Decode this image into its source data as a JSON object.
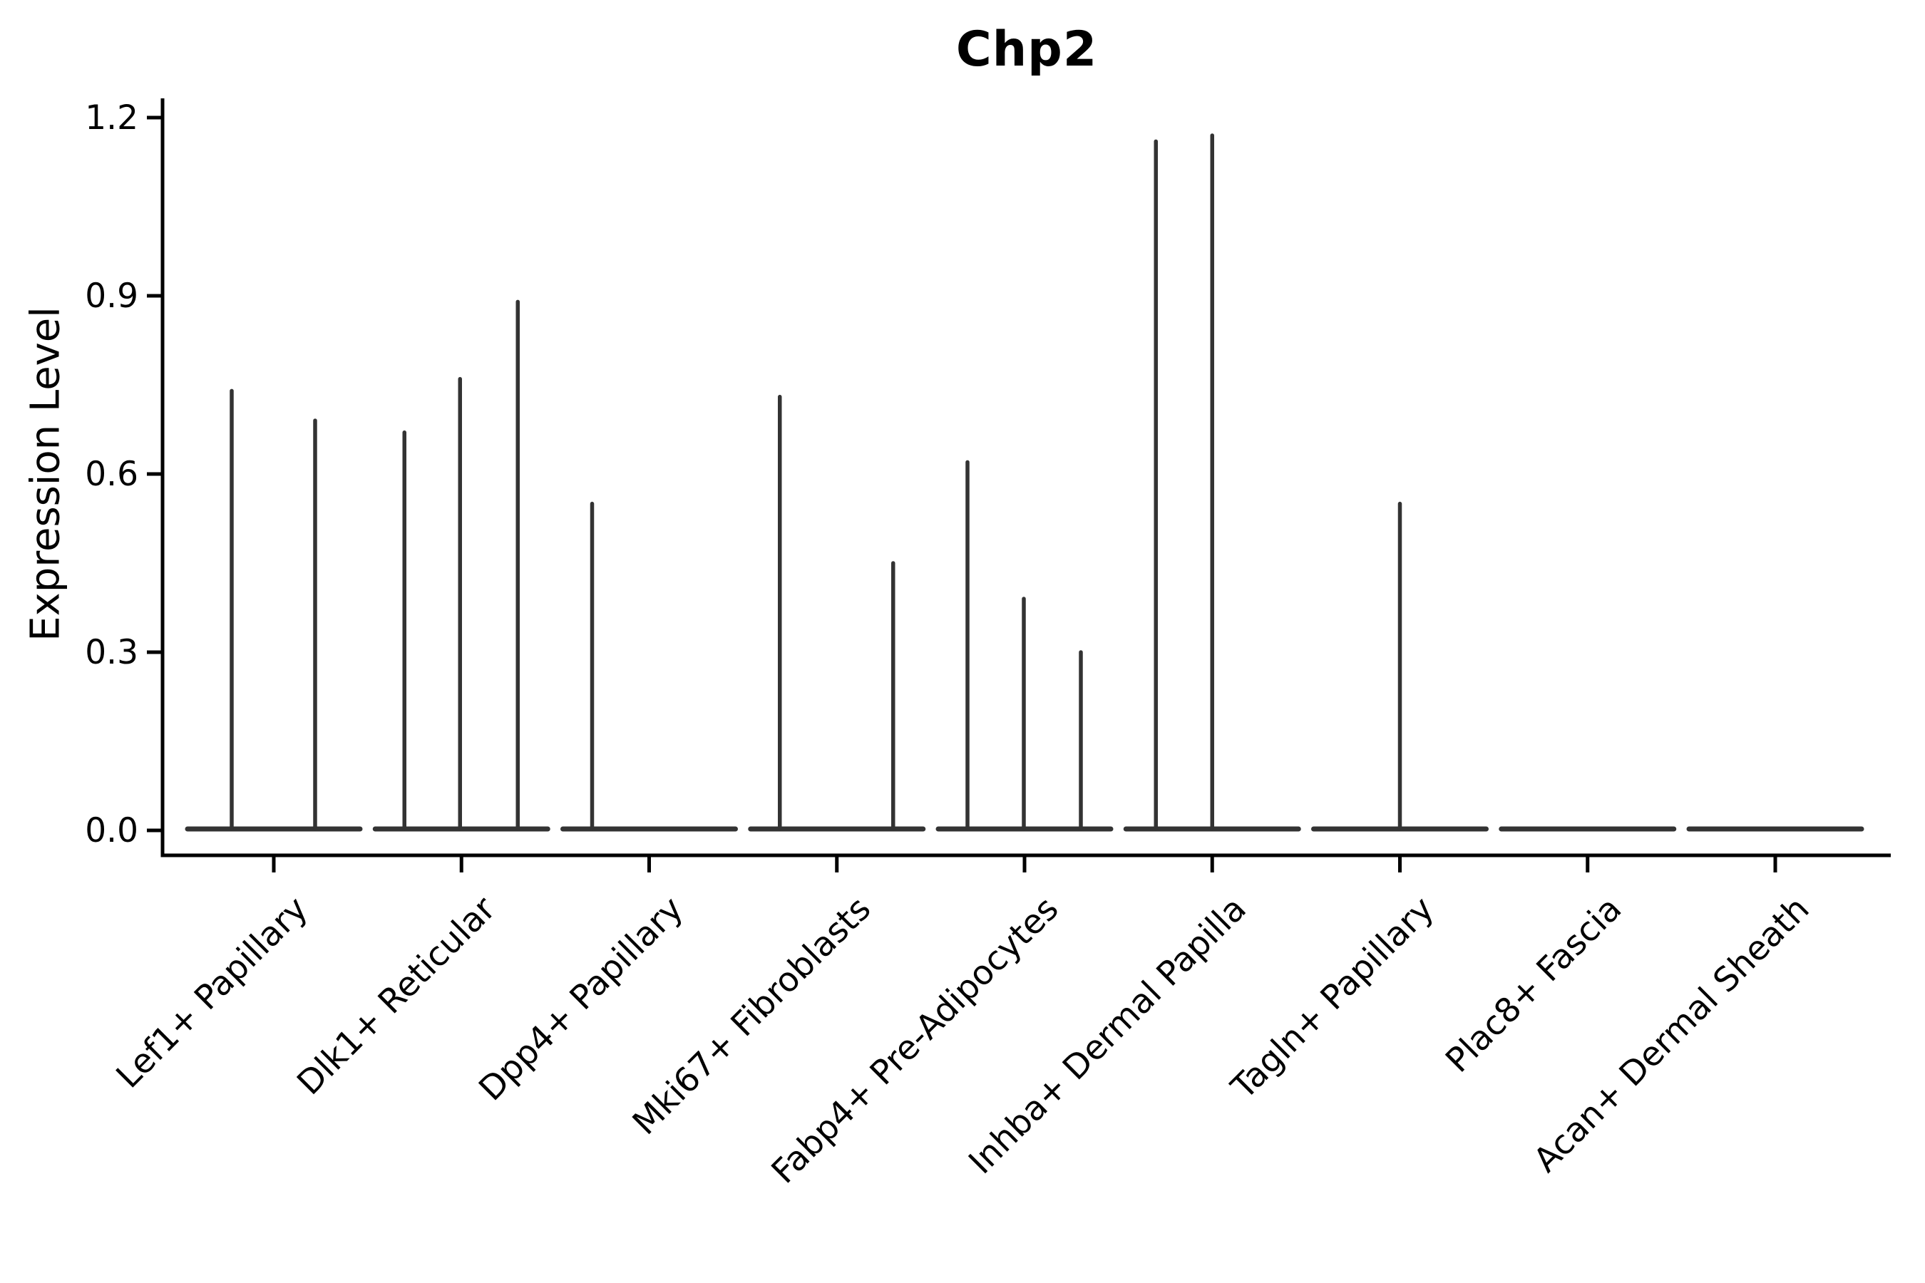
{
  "chart_data": {
    "type": "violin",
    "title": "Chp2",
    "ylabel": "Expression Level",
    "xlabel": "",
    "legend": null,
    "grid": false,
    "ylim": [
      0,
      1.25
    ],
    "yticks": [
      0.0,
      0.3,
      0.6,
      0.9,
      1.2
    ],
    "ytick_labels": [
      "0.0",
      "0.3",
      "0.6",
      "0.9",
      "1.2"
    ],
    "categories": [
      "Lef1+ Papillary",
      "Dlk1+ Reticular",
      "Dpp4+ Papillary",
      "Mki67+ Fibroblasts",
      "Fabp4+ Pre-Adipocytes",
      "Inhba+ Dermal Papilla",
      "Tagln+ Papillary",
      "Plac8+ Fascia",
      "Acan+ Dermal Sheath"
    ],
    "description": "Violin plot; each cell-type violin is flattened at expression 0 with narrow spikes to the maximum expression of rare expressing cells.",
    "groups": [
      {
        "category": "Lef1+ Papillary",
        "spikes": [
          {
            "offset": -59,
            "value": 0.74
          },
          {
            "offset": 58,
            "value": 0.69
          }
        ]
      },
      {
        "category": "Dlk1+ Reticular",
        "spikes": [
          {
            "offset": -80,
            "value": 0.67
          },
          {
            "offset": -2,
            "value": 0.76
          },
          {
            "offset": 79,
            "value": 0.89
          }
        ]
      },
      {
        "category": "Dpp4+ Papillary",
        "spikes": [
          {
            "offset": -80,
            "value": 0.55
          }
        ]
      },
      {
        "category": "Mki67+ Fibroblasts",
        "spikes": [
          {
            "offset": -80,
            "value": 0.73
          },
          {
            "offset": 79,
            "value": 0.45
          }
        ]
      },
      {
        "category": "Fabp4+ Pre-Adipocytes",
        "spikes": [
          {
            "offset": -80,
            "value": 0.62
          },
          {
            "offset": -1,
            "value": 0.39
          },
          {
            "offset": 79,
            "value": 0.3
          }
        ]
      },
      {
        "category": "Inhba+ Dermal Papilla",
        "spikes": [
          {
            "offset": -79,
            "value": 1.16
          },
          {
            "offset": 0,
            "value": 1.17
          }
        ]
      },
      {
        "category": "Tagln+ Papillary",
        "spikes": [
          {
            "offset": 0,
            "value": 0.55
          }
        ]
      },
      {
        "category": "Plac8+ Fascia",
        "spikes": []
      },
      {
        "category": "Acan+ Dermal Sheath",
        "spikes": []
      }
    ],
    "colors": {
      "violin_line": "#333333",
      "axis": "#000000",
      "text": "#000000",
      "background": "#ffffff"
    }
  }
}
